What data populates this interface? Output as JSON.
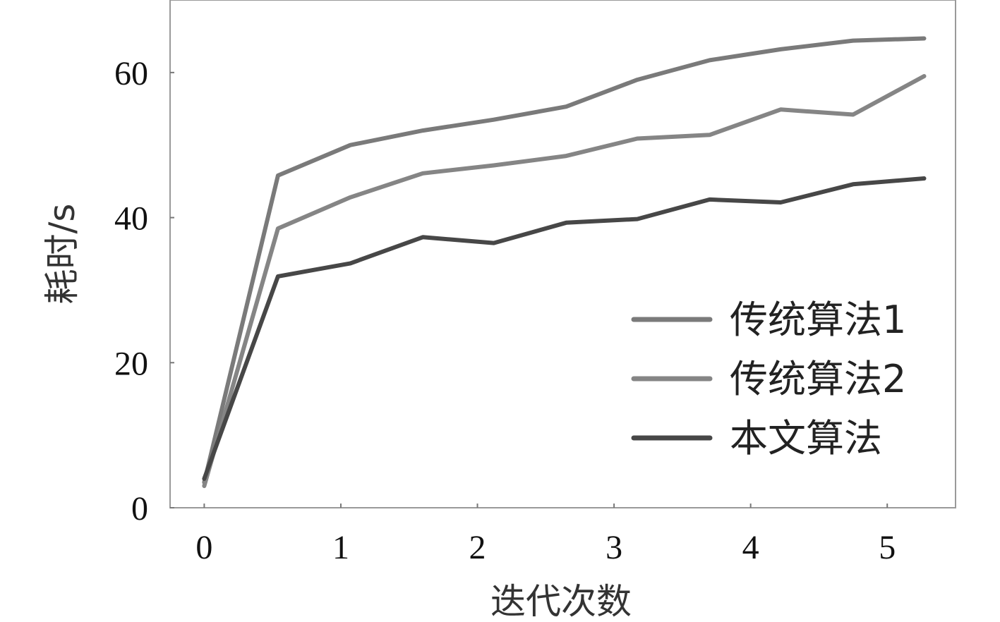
{
  "chart_data": {
    "type": "line",
    "title": "",
    "xlabel": "迭代次数",
    "ylabel": "耗时/s",
    "xlim": [
      -0.25,
      5.5
    ],
    "ylim": [
      0,
      70
    ],
    "x_ticks": [
      "0",
      "1",
      "2",
      "3",
      "4",
      "5"
    ],
    "y_ticks": [
      "0",
      "20",
      "40",
      "60"
    ],
    "grid": false,
    "legend_position": "bottom-right",
    "series": [
      {
        "name": "传统算法1",
        "color": "#7a7a7a",
        "x": [
          0,
          0.54,
          1.07,
          1.6,
          2.12,
          2.65,
          3.17,
          3.7,
          4.22,
          4.75,
          5.27
        ],
        "y": [
          3.5,
          45.8,
          50.0,
          52.0,
          53.5,
          55.3,
          59.0,
          61.7,
          63.2,
          64.4,
          64.7
        ]
      },
      {
        "name": "传统算法2",
        "color": "#858585",
        "x": [
          0,
          0.54,
          1.07,
          1.6,
          2.12,
          2.65,
          3.17,
          3.7,
          4.22,
          4.75,
          5.27
        ],
        "y": [
          3.0,
          38.5,
          42.8,
          46.1,
          47.2,
          48.5,
          50.9,
          51.4,
          54.9,
          54.2,
          59.5
        ]
      },
      {
        "name": "本文算法",
        "color": "#474747",
        "x": [
          0,
          0.54,
          1.07,
          1.6,
          2.12,
          2.65,
          3.17,
          3.7,
          4.22,
          4.75,
          5.27
        ],
        "y": [
          4.0,
          31.9,
          33.7,
          37.3,
          36.5,
          39.3,
          39.8,
          42.5,
          42.1,
          44.6,
          45.4
        ]
      }
    ]
  }
}
